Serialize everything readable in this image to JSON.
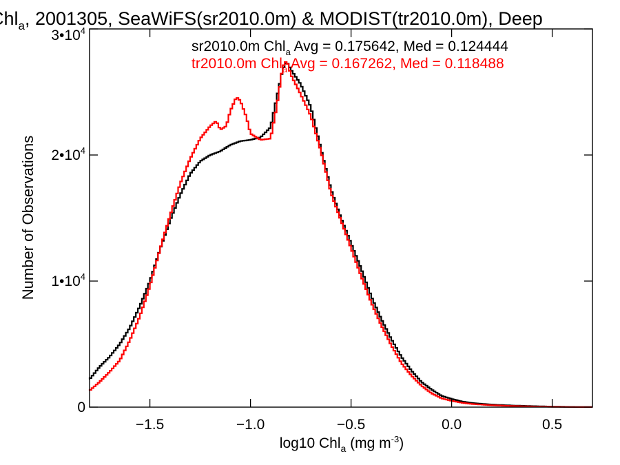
{
  "chart_data": {
    "type": "line",
    "title": {
      "pre": "Chl",
      "sub": "a",
      "post": ", 2001305, SeaWiFS(sr2010.0m) & MODIST(tr2010.0m), Deep"
    },
    "xlabel": {
      "pre": "log10 Chl",
      "sub": "a",
      "mid": " (mg m",
      "sup": "-3",
      "post": ")"
    },
    "ylabel": "Number of Observations",
    "xlim": [
      -1.8,
      0.7
    ],
    "ylim": [
      0,
      30000
    ],
    "xticks": [
      {
        "value": -1.5,
        "label": "−1.5"
      },
      {
        "value": -1.0,
        "label": "−1.0"
      },
      {
        "value": -0.5,
        "label": "−0.5"
      },
      {
        "value": 0.0,
        "label": "0.0"
      },
      {
        "value": 0.5,
        "label": "0.5"
      }
    ],
    "yticks": [
      {
        "value": 0,
        "base": "0",
        "exp": ""
      },
      {
        "value": 10000,
        "base": "1•10",
        "exp": "4"
      },
      {
        "value": 20000,
        "base": "2•10",
        "exp": "4"
      },
      {
        "value": 30000,
        "base": "3•10",
        "exp": "4"
      }
    ],
    "grid": false,
    "series": [
      {
        "color": "#000000",
        "label": {
          "pre": "sr2010.0m Chl",
          "sub": "a",
          "post": " Avg = 0.175642, Med = 0.124444"
        },
        "points": [
          [
            -1.8,
            2200
          ],
          [
            -1.75,
            3200
          ],
          [
            -1.7,
            4000
          ],
          [
            -1.65,
            5000
          ],
          [
            -1.6,
            6300
          ],
          [
            -1.55,
            8000
          ],
          [
            -1.5,
            10000
          ],
          [
            -1.45,
            12500
          ],
          [
            -1.4,
            14800
          ],
          [
            -1.35,
            16800
          ],
          [
            -1.3,
            18500
          ],
          [
            -1.25,
            19500
          ],
          [
            -1.2,
            20000
          ],
          [
            -1.15,
            20300
          ],
          [
            -1.1,
            20800
          ],
          [
            -1.05,
            21100
          ],
          [
            -1.0,
            21200
          ],
          [
            -0.95,
            21400
          ],
          [
            -0.9,
            22200
          ],
          [
            -0.87,
            24500
          ],
          [
            -0.84,
            26800
          ],
          [
            -0.82,
            27400
          ],
          [
            -0.8,
            26800
          ],
          [
            -0.75,
            25600
          ],
          [
            -0.7,
            23800
          ],
          [
            -0.65,
            20500
          ],
          [
            -0.6,
            17300
          ],
          [
            -0.55,
            15000
          ],
          [
            -0.5,
            13000
          ],
          [
            -0.45,
            11000
          ],
          [
            -0.4,
            8800
          ],
          [
            -0.35,
            7000
          ],
          [
            -0.3,
            5400
          ],
          [
            -0.25,
            4000
          ],
          [
            -0.2,
            2900
          ],
          [
            -0.15,
            2000
          ],
          [
            -0.1,
            1400
          ],
          [
            -0.05,
            900
          ],
          [
            0.0,
            650
          ],
          [
            0.05,
            450
          ],
          [
            0.1,
            330
          ],
          [
            0.2,
            200
          ],
          [
            0.3,
            130
          ],
          [
            0.4,
            80
          ],
          [
            0.5,
            40
          ],
          [
            0.6,
            15
          ],
          [
            0.7,
            5
          ]
        ]
      },
      {
        "color": "#ff0000",
        "label": {
          "pre": "tr2010.0m Chl",
          "sub": "a",
          "post": " Avg = 0.167262, Med = 0.118488"
        },
        "points": [
          [
            -1.8,
            1300
          ],
          [
            -1.75,
            2000
          ],
          [
            -1.7,
            2800
          ],
          [
            -1.65,
            3700
          ],
          [
            -1.6,
            5300
          ],
          [
            -1.55,
            7200
          ],
          [
            -1.5,
            9600
          ],
          [
            -1.45,
            12500
          ],
          [
            -1.4,
            15200
          ],
          [
            -1.35,
            17700
          ],
          [
            -1.3,
            19700
          ],
          [
            -1.25,
            21300
          ],
          [
            -1.2,
            22300
          ],
          [
            -1.17,
            22700
          ],
          [
            -1.15,
            22000
          ],
          [
            -1.12,
            22300
          ],
          [
            -1.1,
            23500
          ],
          [
            -1.07,
            24600
          ],
          [
            -1.05,
            24300
          ],
          [
            -1.02,
            23000
          ],
          [
            -1.0,
            21700
          ],
          [
            -0.95,
            21200
          ],
          [
            -0.9,
            21300
          ],
          [
            -0.87,
            23800
          ],
          [
            -0.84,
            27000
          ],
          [
            -0.82,
            27500
          ],
          [
            -0.8,
            26400
          ],
          [
            -0.75,
            24800
          ],
          [
            -0.7,
            23100
          ],
          [
            -0.65,
            20300
          ],
          [
            -0.6,
            17000
          ],
          [
            -0.55,
            14800
          ],
          [
            -0.5,
            12600
          ],
          [
            -0.45,
            10400
          ],
          [
            -0.4,
            8300
          ],
          [
            -0.35,
            6500
          ],
          [
            -0.3,
            4900
          ],
          [
            -0.25,
            3500
          ],
          [
            -0.2,
            2500
          ],
          [
            -0.15,
            1700
          ],
          [
            -0.1,
            1100
          ],
          [
            -0.05,
            700
          ],
          [
            0.0,
            500
          ],
          [
            0.05,
            350
          ],
          [
            0.1,
            250
          ],
          [
            0.2,
            150
          ],
          [
            0.3,
            90
          ],
          [
            0.4,
            50
          ],
          [
            0.5,
            25
          ],
          [
            0.6,
            10
          ],
          [
            0.7,
            3
          ]
        ]
      }
    ]
  }
}
